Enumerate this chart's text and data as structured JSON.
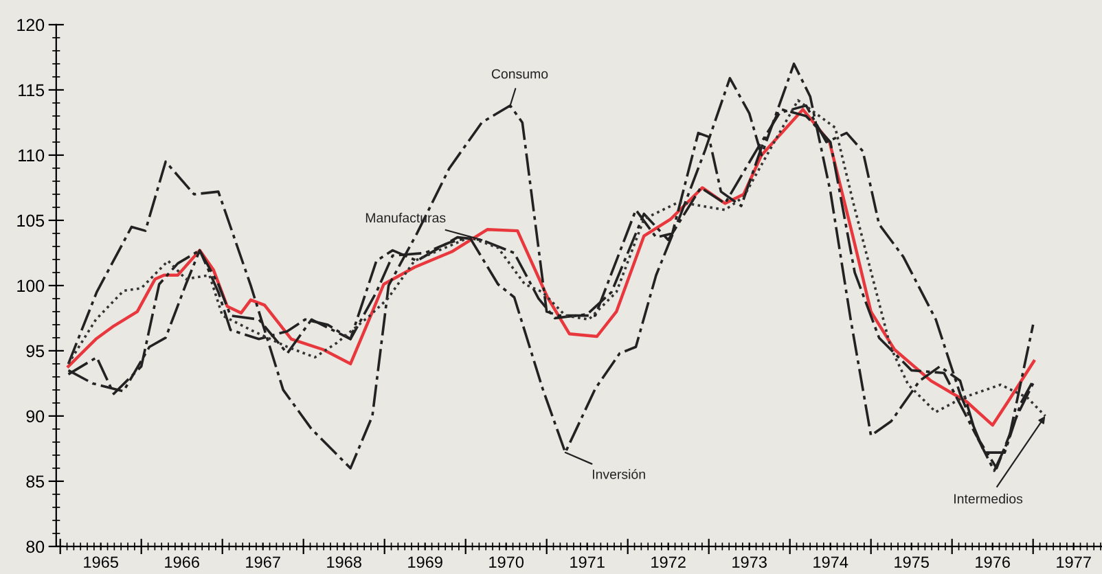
{
  "chart_data": {
    "type": "line",
    "xlim": [
      1964.95,
      1977.85
    ],
    "ylim": [
      80,
      120
    ],
    "xticks": [
      {
        "value": 1965,
        "label": null
      },
      {
        "value": 1965.5,
        "label": "1965"
      },
      {
        "value": 1966,
        "label": null
      },
      {
        "value": 1966.5,
        "label": "1966"
      },
      {
        "value": 1967,
        "label": null
      },
      {
        "value": 1967.5,
        "label": "1967"
      },
      {
        "value": 1968,
        "label": null
      },
      {
        "value": 1968.5,
        "label": "1968"
      },
      {
        "value": 1969,
        "label": null
      },
      {
        "value": 1969.5,
        "label": "1969"
      },
      {
        "value": 1970,
        "label": null
      },
      {
        "value": 1970.5,
        "label": "1970"
      },
      {
        "value": 1971,
        "label": null
      },
      {
        "value": 1971.5,
        "label": "1971"
      },
      {
        "value": 1972,
        "label": null
      },
      {
        "value": 1972.5,
        "label": "1972"
      },
      {
        "value": 1973,
        "label": null
      },
      {
        "value": 1973.5,
        "label": "1973"
      },
      {
        "value": 1974,
        "label": null
      },
      {
        "value": 1974.5,
        "label": "1974"
      },
      {
        "value": 1975,
        "label": null
      },
      {
        "value": 1975.5,
        "label": "1975"
      },
      {
        "value": 1976,
        "label": null
      },
      {
        "value": 1976.5,
        "label": "1976"
      },
      {
        "value": 1977,
        "label": null
      },
      {
        "value": 1977.5,
        "label": "1977"
      }
    ],
    "yticks": [
      80,
      85,
      90,
      95,
      100,
      105,
      110,
      115,
      120
    ],
    "grid": false,
    "legend": false,
    "marker": "none",
    "series": [
      {
        "color": "#e8383d",
        "line_style": "solid",
        "x": [
          1965.1,
          1965.44,
          1965.66,
          1965.95,
          1966.17,
          1966.28,
          1966.45,
          1966.72,
          1966.89,
          1967.06,
          1967.23,
          1967.35,
          1967.52,
          1967.85,
          1968.24,
          1968.58,
          1968.81,
          1968.99,
          1969.37,
          1969.83,
          1970.27,
          1970.64,
          1971.01,
          1971.28,
          1971.62,
          1971.86,
          1972.2,
          1972.53,
          1972.92,
          1973.2,
          1973.43,
          1973.65,
          1974.16,
          1974.49,
          1974.78,
          1975.0,
          1975.29,
          1975.74,
          1976.18,
          1976.5,
          1976.69,
          1977.01
        ],
        "values": [
          93.8,
          95.9,
          96.9,
          98,
          100.5,
          100.8,
          100.8,
          102.7,
          101.2,
          98.4,
          97.9,
          98.9,
          98.5,
          95.9,
          95.1,
          94,
          97.4,
          100.1,
          101.4,
          102.6,
          104.3,
          104.2,
          99.1,
          96.3,
          96.1,
          98,
          103.8,
          105.1,
          107.5,
          106.3,
          107,
          110,
          113.5,
          111,
          103.7,
          98,
          95.1,
          92.7,
          91.1,
          89.3,
          91.1,
          94.2
        ]
      },
      {
        "name": "Consumo",
        "color": "#222222",
        "line_style": "dashed",
        "x": [
          1965.1,
          1965.45,
          1965.88,
          1966.05,
          1966.3,
          1966.65,
          1966.95,
          1967.35,
          1967.75,
          1968.1,
          1968.58,
          1968.85,
          1969.05,
          1969.4,
          1969.8,
          1970.2,
          1970.55,
          1970.7,
          1971.0,
          1971.15,
          1971.6,
          1972.1,
          1972.35,
          1972.55,
          1972.87,
          1973.0,
          1973.15,
          1973.4,
          1973.65,
          1973.85,
          1974.2,
          1974.45,
          1974.7,
          1974.9,
          1975.1,
          1975.4,
          1975.8,
          1976.1,
          1976.4,
          1976.65,
          1976.85,
          1977.0
        ],
        "values": [
          94,
          99.5,
          104.5,
          104.2,
          109.5,
          107,
          107.2,
          100,
          92,
          89,
          86,
          90,
          100,
          104,
          109,
          112.5,
          113.8,
          112.5,
          98,
          97.7,
          97.7,
          105.8,
          103.7,
          104,
          111.7,
          111.4,
          107.2,
          106.1,
          110.6,
          113.2,
          113.8,
          111,
          111.7,
          110.3,
          104.7,
          102.2,
          97.4,
          91.7,
          87.2,
          87.2,
          91,
          92.7
        ]
      },
      {
        "name": "Manufacturas",
        "color": "#222222",
        "line_style": "dashed",
        "x": [
          1965.1,
          1965.45,
          1965.66,
          1966.0,
          1966.22,
          1966.45,
          1966.72,
          1966.95,
          1967.1,
          1967.45,
          1967.8,
          1968.1,
          1968.58,
          1968.9,
          1969.1,
          1969.4,
          1969.9,
          1970.2,
          1970.6,
          1970.9,
          1971.1,
          1971.5,
          1971.8,
          1972.2,
          1972.5,
          1972.9,
          1973.2,
          1973.6,
          1973.9,
          1974.2,
          1974.5,
          1974.8,
          1975.1,
          1975.5,
          1975.9,
          1976.3,
          1976.55,
          1976.8,
          1977.0
        ],
        "values": [
          93.2,
          94.5,
          91.7,
          93.8,
          100.1,
          101.7,
          102.7,
          100.1,
          97.7,
          97.4,
          94.8,
          97.4,
          95.9,
          101.9,
          102.7,
          101.9,
          103.7,
          103.5,
          102.5,
          99,
          97.5,
          97.8,
          99.5,
          105.5,
          103.5,
          107.5,
          106.3,
          110.5,
          113.5,
          113,
          111,
          101,
          96,
          93.5,
          93.3,
          88.5,
          86,
          90,
          92.5
        ]
      },
      {
        "name": "Inversión",
        "color": "#222222",
        "line_style": "dashed",
        "x": [
          1965.1,
          1965.4,
          1965.78,
          1966.1,
          1966.3,
          1966.55,
          1966.72,
          1966.95,
          1967.1,
          1967.45,
          1967.8,
          1968.02,
          1968.3,
          1968.58,
          1968.9,
          1969.1,
          1969.5,
          1969.8,
          1970.05,
          1970.4,
          1970.6,
          1970.95,
          1971.23,
          1971.6,
          1971.9,
          1972.1,
          1972.35,
          1972.65,
          1972.95,
          1973.26,
          1973.5,
          1973.65,
          1974.05,
          1974.25,
          1974.5,
          1974.75,
          1975.0,
          1975.25,
          1975.6,
          1975.85,
          1976.1,
          1976.3,
          1976.52,
          1976.7,
          1977.0
        ],
        "values": [
          93.5,
          92.5,
          91.9,
          95.3,
          96,
          100.1,
          102.7,
          99.5,
          96.6,
          95.9,
          96.5,
          97.4,
          97,
          95.9,
          99.5,
          102.3,
          102.5,
          103.3,
          103.7,
          100.1,
          99.1,
          92.1,
          87.2,
          92.1,
          94.8,
          95.3,
          100.8,
          105.4,
          110.3,
          115.9,
          113.2,
          110,
          117,
          114.5,
          107.2,
          97.4,
          88.5,
          89.6,
          92.7,
          93.8,
          92.7,
          88.5,
          85.8,
          88.2,
          97
        ]
      },
      {
        "name": "Intermedios",
        "color": "#333333",
        "line_style": "dotted",
        "x": [
          1965.1,
          1965.44,
          1965.78,
          1966.0,
          1966.33,
          1966.55,
          1966.84,
          1967.0,
          1967.35,
          1967.8,
          1968.14,
          1968.41,
          1968.82,
          1969.04,
          1969.37,
          1970.05,
          1970.4,
          1970.73,
          1970.95,
          1971.23,
          1971.52,
          1971.86,
          1972.2,
          1972.63,
          1973.2,
          1973.43,
          1973.77,
          1974.1,
          1974.56,
          1974.78,
          1975.24,
          1975.46,
          1975.8,
          1976.13,
          1976.6,
          1976.93,
          1977.15
        ],
        "values": [
          94,
          97.4,
          99.6,
          99.8,
          101.9,
          100.5,
          100.8,
          97.7,
          96.6,
          95.3,
          94.5,
          95.6,
          97.7,
          99,
          101.9,
          103.7,
          102.9,
          100.1,
          99.5,
          97.7,
          97.4,
          99.5,
          105.1,
          106.4,
          105.8,
          106.8,
          110.6,
          114.2,
          112.1,
          106.4,
          95.3,
          92.4,
          90.3,
          91.4,
          92.4,
          91.4,
          90
        ]
      }
    ]
  }
}
